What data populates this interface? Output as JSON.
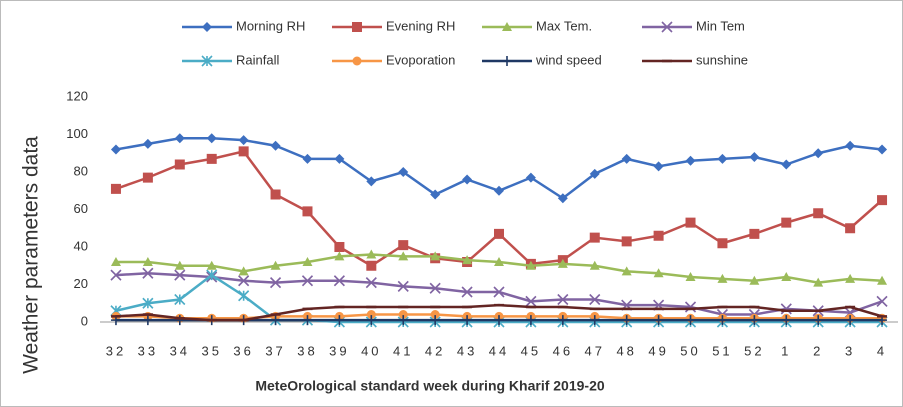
{
  "chart_data": {
    "type": "line",
    "y_label": "Weather parameters data",
    "x_label": "MeteOrological standard week during Kharif 2019-20",
    "categories": [
      "32",
      "33",
      "34",
      "35",
      "36",
      "37",
      "38",
      "39",
      "40",
      "41",
      "42",
      "43",
      "44",
      "45",
      "46",
      "47",
      "48",
      "49",
      "50",
      "51",
      "52",
      "1",
      "2",
      "3",
      "4"
    ],
    "ylim": [
      0,
      120
    ],
    "yticks": [
      0,
      20,
      40,
      60,
      80,
      100,
      120
    ],
    "grid": false,
    "legend": "top",
    "series": [
      {
        "name": "Morning RH",
        "color": "#3d6fc0",
        "marker": "diamond",
        "values": [
          92,
          95,
          98,
          98,
          97,
          94,
          87,
          87,
          75,
          80,
          68,
          76,
          70,
          77,
          66,
          79,
          87,
          83,
          86,
          87,
          88,
          84,
          90,
          94,
          92
        ]
      },
      {
        "name": "Evening RH",
        "color": "#c0504d",
        "marker": "square",
        "values": [
          71,
          77,
          84,
          87,
          91,
          68,
          59,
          40,
          30,
          41,
          34,
          32,
          47,
          31,
          33,
          45,
          43,
          46,
          53,
          42,
          47,
          53,
          58,
          50,
          65
        ]
      },
      {
        "name": "Max Tem.",
        "color": "#9bbb59",
        "marker": "triangle",
        "values": [
          32,
          32,
          30,
          30,
          27,
          30,
          32,
          35,
          36,
          35,
          35,
          33,
          32,
          30,
          31,
          30,
          27,
          26,
          24,
          23,
          22,
          24,
          21,
          23,
          22
        ]
      },
      {
        "name": "Min Tem",
        "color": "#8064a2",
        "marker": "x",
        "values": [
          25,
          26,
          25,
          24,
          22,
          21,
          22,
          22,
          21,
          19,
          18,
          16,
          16,
          11,
          12,
          12,
          9,
          9,
          8,
          4,
          4,
          7,
          6,
          5,
          11
        ]
      },
      {
        "name": "Rainfall",
        "color": "#4bacc6",
        "marker": "star",
        "values": [
          6,
          10,
          12,
          25,
          14,
          1,
          1,
          0,
          0,
          0,
          0,
          0,
          0,
          0,
          0,
          0,
          0,
          0,
          0,
          0,
          0,
          0,
          0,
          0,
          0
        ]
      },
      {
        "name": "Evoporation",
        "color": "#f79646",
        "marker": "circle",
        "values": [
          3,
          3,
          2,
          2,
          2,
          3,
          3,
          3,
          4,
          4,
          4,
          3,
          3,
          3,
          3,
          3,
          2,
          2,
          2,
          2,
          2,
          2,
          2,
          2,
          2
        ]
      },
      {
        "name": "wind speed",
        "color": "#1f3864",
        "marker": "plus",
        "values": [
          1,
          1,
          1,
          1,
          1,
          1,
          1,
          1,
          1,
          1,
          1,
          1,
          1,
          1,
          1,
          1,
          1,
          1,
          1,
          1,
          1,
          1,
          1,
          1,
          1
        ]
      },
      {
        "name": "sunshine",
        "color": "#632523",
        "marker": "dash",
        "values": [
          3,
          4,
          2,
          1,
          1,
          4,
          7,
          8,
          8,
          8,
          8,
          8,
          9,
          8,
          8,
          7,
          7,
          7,
          7,
          8,
          8,
          6,
          6,
          8,
          3
        ]
      }
    ]
  }
}
